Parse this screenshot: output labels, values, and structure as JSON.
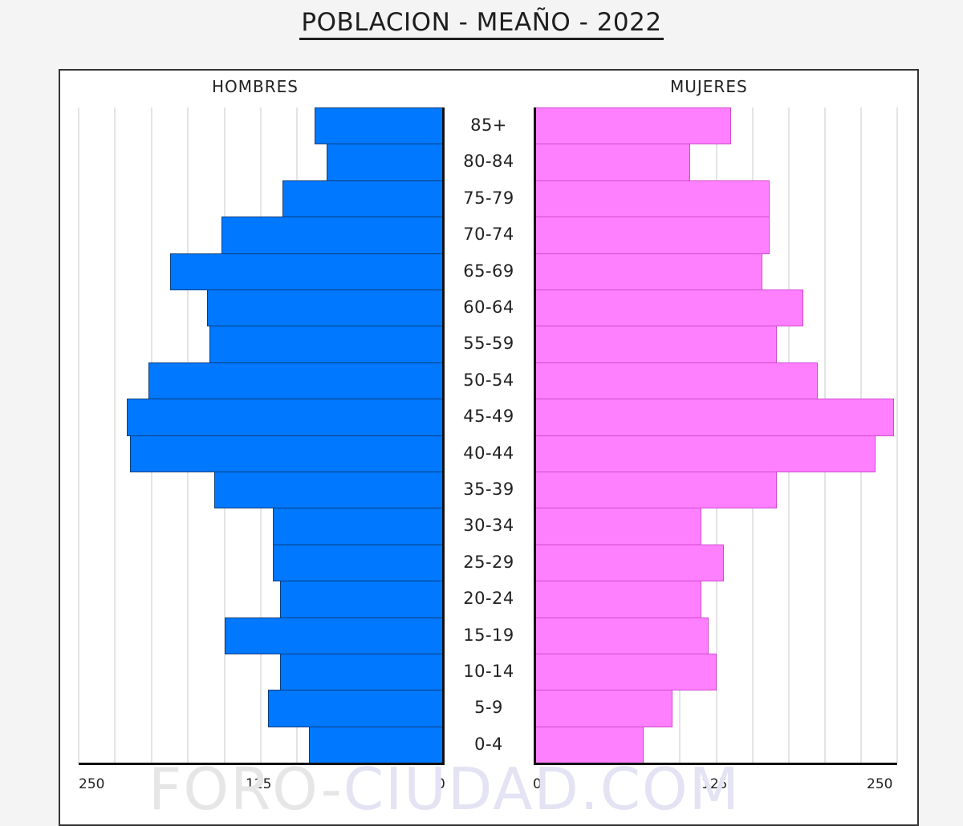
{
  "title": "POBLACION - MEAÑO - 2022",
  "watermark": {
    "part1": "FORO-",
    "part2": "CIUDAD.COM"
  },
  "colors": {
    "male": "#0078ff",
    "female": "#ff80ff",
    "background": "#f4f4f4"
  },
  "labels": {
    "male": "HOMBRES",
    "female": "MUJERES"
  },
  "ticks": {
    "left": [
      "250",
      "125",
      "0"
    ],
    "right": [
      "0",
      "125",
      "250"
    ]
  },
  "chart_data": {
    "type": "bar",
    "subtype": "population-pyramid",
    "title": "POBLACION - MEAÑO - 2022",
    "categories": [
      "85+",
      "80-84",
      "75-79",
      "70-74",
      "65-69",
      "60-64",
      "55-59",
      "50-54",
      "45-49",
      "40-44",
      "35-39",
      "30-34",
      "25-29",
      "20-24",
      "15-19",
      "10-14",
      "5-9",
      "0-4"
    ],
    "series": [
      {
        "name": "HOMBRES",
        "color": "#0078ff",
        "values": [
          88,
          80,
          110,
          152,
          187,
          162,
          160,
          202,
          217,
          215,
          157,
          117,
          117,
          112,
          150,
          112,
          120,
          92
        ]
      },
      {
        "name": "MUJERES",
        "color": "#ff80ff",
        "values": [
          135,
          107,
          162,
          162,
          157,
          185,
          167,
          195,
          248,
          235,
          167,
          115,
          130,
          115,
          120,
          125,
          95,
          75
        ]
      }
    ],
    "xlabel": "",
    "ylabel": "",
    "xlim": [
      0,
      250
    ],
    "xticks": [
      250,
      125,
      0,
      0,
      125,
      250
    ],
    "grid": true,
    "grid_step": 25,
    "orientation": "horizontal"
  }
}
